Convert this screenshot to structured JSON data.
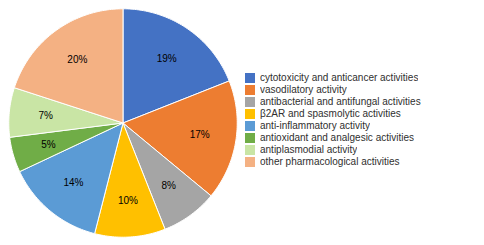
{
  "chart_data": {
    "type": "pie",
    "categories": [
      "cytotoxicity and anticancer activities",
      "vasodilatory activity",
      "antibacterial and antifungal activities",
      "β2AR and spasmolytic  activities",
      "anti-inflammatory activity",
      "antioxidant and analgesic activities",
      "antiplasmodial activity",
      "other pharmacological activities"
    ],
    "values": [
      19,
      17,
      8,
      10,
      14,
      5,
      7,
      20
    ],
    "value_labels": [
      "19%",
      "17%",
      "8%",
      "10%",
      "14%",
      "5%",
      "7%",
      "20%"
    ],
    "colors": [
      "#4472C4",
      "#ED7D31",
      "#A5A5A5",
      "#FFC000",
      "#5B9BD5",
      "#70AD47",
      "#C9E5A5",
      "#F4B183"
    ],
    "data_labels": true,
    "legend": "right"
  }
}
